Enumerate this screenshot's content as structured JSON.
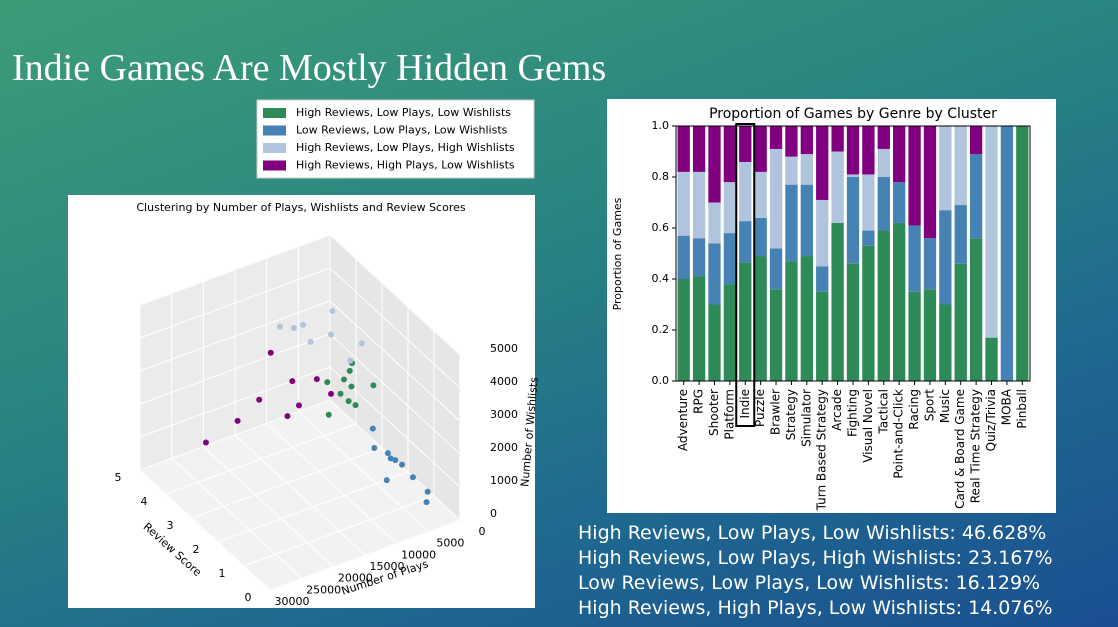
{
  "slide": {
    "title": "Indie Games Are Mostly Hidden Gems",
    "stats": [
      "High Reviews, Low Plays, Low Wishlists: 46.628%",
      "High Reviews, Low Plays, High Wishlists: 23.167%",
      "Low Reviews, Low Plays, Low Wishlists: 16.129%",
      "High Reviews, High Plays, Low Wishlists: 14.076%"
    ]
  },
  "chart_data": [
    {
      "type": "scatter3d",
      "title": "Clustering by Number of Plays, Wishlists and Review Scores",
      "xlabel": "Number of Plays",
      "ylabel": "Review Score",
      "zlabel": "Number of Wishlists",
      "xlim": [
        0,
        30000
      ],
      "xticks": [
        0,
        5000,
        10000,
        15000,
        20000,
        25000,
        30000
      ],
      "ylim": [
        0,
        5
      ],
      "yticks": [
        0,
        1,
        2,
        3,
        4,
        5
      ],
      "zlim": [
        0,
        5000
      ],
      "zticks": [
        0,
        1000,
        2000,
        3000,
        4000,
        5000
      ],
      "series": [
        {
          "name": "High Reviews, Low Plays, Low Wishlists",
          "color": "#2e8b57",
          "x": [
            4000,
            6000,
            5000,
            7000,
            3000,
            8000,
            5500,
            4500,
            6500,
            3500
          ],
          "y": [
            3.2,
            3.0,
            2.8,
            3.4,
            2.6,
            3.1,
            2.9,
            3.5,
            2.7,
            3.3
          ],
          "z": [
            2000,
            2500,
            1800,
            2200,
            2400,
            1500,
            2800,
            1600,
            2100,
            2600
          ]
        },
        {
          "name": "Low Reviews, Low Plays, Low Wishlists",
          "color": "#4682b4",
          "x": [
            2000,
            3000,
            1500,
            4000,
            2500,
            1000,
            3500,
            5000,
            2000,
            4500
          ],
          "y": [
            2.0,
            1.5,
            2.3,
            1.8,
            1.2,
            1.0,
            2.5,
            1.6,
            0.8,
            2.2
          ],
          "z": [
            500,
            800,
            300,
            1000,
            600,
            200,
            1200,
            400,
            100,
            900
          ]
        },
        {
          "name": "High Reviews, Low Plays, High Wishlists",
          "color": "#b0c4de",
          "x": [
            6000,
            8000,
            10000,
            5000,
            12000,
            7000,
            9000,
            4000
          ],
          "y": [
            3.5,
            3.8,
            3.6,
            3.0,
            4.0,
            3.2,
            4.2,
            2.8
          ],
          "z": [
            3500,
            3200,
            4000,
            3000,
            3800,
            4500,
            3400,
            3600
          ]
        },
        {
          "name": "High Reviews, High Plays, Low Wishlists",
          "color": "#800080",
          "x": [
            8000,
            12000,
            15000,
            10000,
            7000,
            20000,
            9000,
            6000,
            11000
          ],
          "y": [
            4.5,
            4.8,
            4.9,
            4.2,
            3.8,
            4.9,
            4.0,
            3.5,
            4.6
          ],
          "z": [
            1500,
            1000,
            500,
            800,
            2000,
            200,
            1200,
            1700,
            2500
          ]
        }
      ]
    },
    {
      "type": "stacked_bar",
      "title": "Proportion of Games by Genre by Cluster",
      "ylabel": "Proportion of Games",
      "categories": [
        "Adventure",
        "RPG",
        "Shooter",
        "Platform",
        "Indie",
        "Puzzle",
        "Brawler",
        "Strategy",
        "Simulator",
        "Turn Based Strategy",
        "Arcade",
        "Fighting",
        "Visual Novel",
        "Tactical",
        "Point-and-Click",
        "Racing",
        "Sport",
        "Music",
        "Card & Board Game",
        "Real Time Strategy",
        "Quiz/Trivia",
        "MOBA",
        "Pinball"
      ],
      "ylim": [
        0,
        1
      ],
      "yticks": [
        {
          "value": 0,
          "label": "0.0"
        },
        {
          "value": 0.2,
          "label": "0.2"
        },
        {
          "value": 0.4,
          "label": "0.4"
        },
        {
          "value": 0.6,
          "label": "0.6"
        },
        {
          "value": 0.8,
          "label": "0.8"
        },
        {
          "value": 1,
          "label": "1.0"
        }
      ],
      "series": [
        {
          "color": "#2e8b57",
          "values": [
            0.4,
            0.41,
            0.3,
            0.38,
            0.466,
            0.49,
            0.36,
            0.47,
            0.49,
            0.35,
            0.62,
            0.46,
            0.53,
            0.59,
            0.62,
            0.35,
            0.36,
            0.3,
            0.46,
            0.56,
            0.17,
            0,
            1.0
          ]
        },
        {
          "color": "#4682b4",
          "values": [
            0.17,
            0.15,
            0.24,
            0.2,
            0.161,
            0.15,
            0.16,
            0.3,
            0.28,
            0.1,
            0,
            0.34,
            0.06,
            0.21,
            0.16,
            0.26,
            0.2,
            0.37,
            0.23,
            0.33,
            0,
            1.0,
            0
          ]
        },
        {
          "color": "#b0c4de",
          "values": [
            0.25,
            0.26,
            0.16,
            0.2,
            0.232,
            0.18,
            0.39,
            0.11,
            0.12,
            0.26,
            0.28,
            0.01,
            0.22,
            0.11,
            0,
            0,
            0,
            0.33,
            0.31,
            0,
            0.83,
            0,
            0
          ]
        },
        {
          "color": "#800080",
          "values": [
            0.18,
            0.18,
            0.3,
            0.22,
            0.141,
            0.18,
            0.09,
            0.12,
            0.11,
            0.29,
            0.1,
            0.19,
            0.19,
            0.09,
            0.22,
            0.39,
            0.44,
            0,
            0,
            0.11,
            0,
            0,
            0
          ]
        }
      ]
    }
  ]
}
